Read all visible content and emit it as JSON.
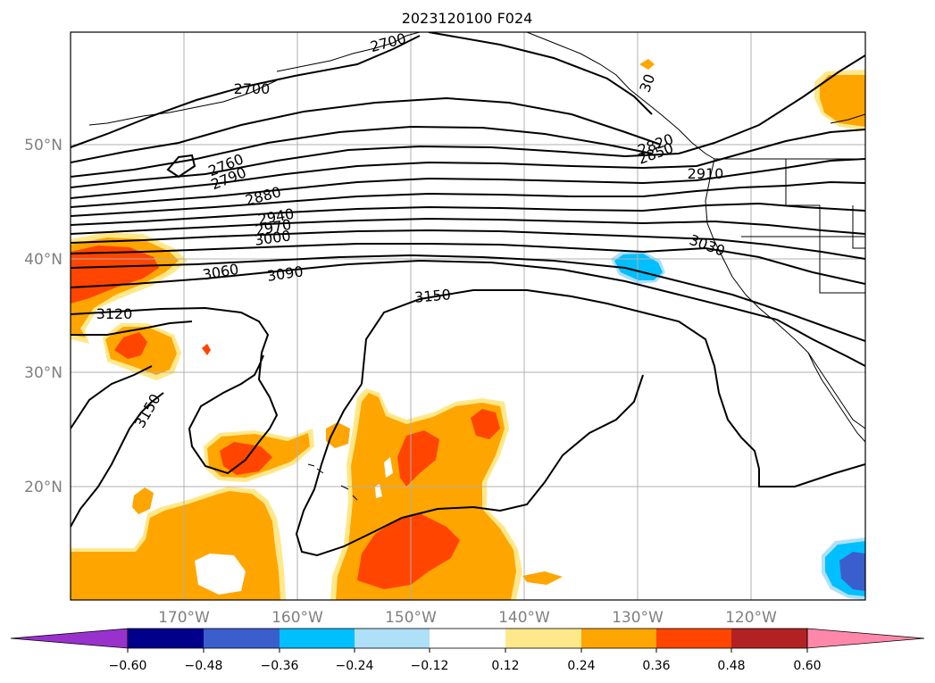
{
  "title": "2023120100 F024",
  "lat_labels": [
    "50°N",
    "40°N",
    "30°N",
    "20°N"
  ],
  "lon_labels": [
    "170°W",
    "160°W",
    "150°W",
    "140°W",
    "130°W",
    "120°W"
  ],
  "contour_labels": [
    "2700",
    "2700",
    "2760",
    "2790",
    "2880",
    "2940",
    "2970",
    "3000",
    "3060",
    "3090",
    "3120",
    "3150",
    "3150",
    "2820",
    "2850",
    "2910",
    "3030",
    "30"
  ],
  "colorbar": {
    "ticks": [
      "−0.60",
      "−0.48",
      "−0.36",
      "−0.24",
      "−0.12",
      "0.12",
      "0.24",
      "0.36",
      "0.48",
      "0.60"
    ],
    "colors": [
      "#9932cc",
      "#00008b",
      "#3a5fcd",
      "#00bfff",
      "#aee0f8",
      "#ffffff",
      "#ffe88a",
      "#ffa500",
      "#ff4500",
      "#b22222",
      "#ff88aa"
    ]
  },
  "colors": {
    "light_yellow": "#ffe88a",
    "orange": "#ffa500",
    "red_orange": "#ff4500",
    "light_blue": "#aee0f8",
    "sky_blue": "#00bfff",
    "blue": "#3a5fcd",
    "contour": "#000000",
    "grid": "#b0b0b0",
    "axis_labels": "#808080"
  }
}
